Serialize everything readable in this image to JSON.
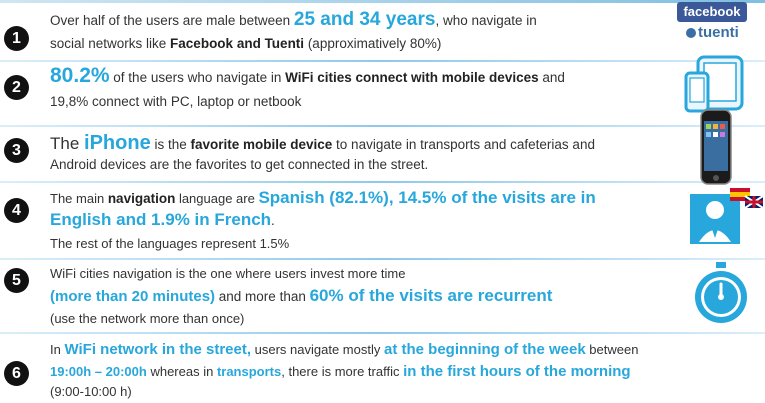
{
  "rows": [
    {
      "n": "1",
      "l1a": "Over half of the users are male between ",
      "l1b": "25 and 34 years",
      ", ": "",
      "l1c": ", who navigate in",
      "l2a": "social networks like ",
      "l2b": "Facebook and Tuenti",
      "l2c": " (approximatively 80%)"
    },
    {
      "n": "2",
      "l1a": "80.2%",
      "l1b": " of the users who navigate in ",
      "l1c": "WiFi cities connect with mobile devices",
      "l1d": " and",
      "l2": "19,8% connect with PC, laptop or netbook"
    },
    {
      "n": "3",
      "l1a": "The ",
      "l1b": "iPhone",
      "l1c": " is the ",
      "l1d": "favorite mobile device",
      "l1e": " to navigate  in transports and cafeterias  and",
      "l2": "Android devices are the favorites  to get connected in the street."
    },
    {
      "n": "4",
      "l1a": "The main ",
      "l1b": "navigation",
      "l1c": " language are ",
      "l1d": "Spanish (82.1%), 14.5%  of the visits are in",
      "l2a": "English and 1.9% in French",
      "l2b": ".",
      "l3": "The rest of the languages represent 1.5%"
    },
    {
      "n": "5",
      "l1": "WiFi cities navigation is the one where users invest more time",
      "l2a": "(more than 20 minutes)",
      "l2b": " and more than  ",
      "l2c": "60% of the visits are recurrent",
      "l3": "(use the network more than once)"
    },
    {
      "n": "6",
      "l1a": "In ",
      "l1b": "WiFi network in the street,",
      "l1c": " users navigate mostly ",
      "l1d": "at the beginning of the week",
      "l1e": " between",
      "l2a": "19:00h – 20:00h",
      "l2b": " whereas in ",
      "l2c": "transports",
      "l2d": ", there is more traffic ",
      "l2e": "in the first hours of the morning",
      "l3": "(9:00-10:00 h)"
    }
  ],
  "logos": {
    "facebook": "facebook",
    "tuenti": "tuenti"
  },
  "icons": [
    "facebook-logo",
    "tuenti-logo",
    "tablet-phone-icon",
    "iphone-icon",
    "user-flags-icon",
    "stopwatch-icon"
  ],
  "colors": {
    "accent": "#27a7dc",
    "dark": "#111111",
    "text": "#333333",
    "facebook": "#3b5998",
    "tuenti": "#3a6fa6"
  }
}
